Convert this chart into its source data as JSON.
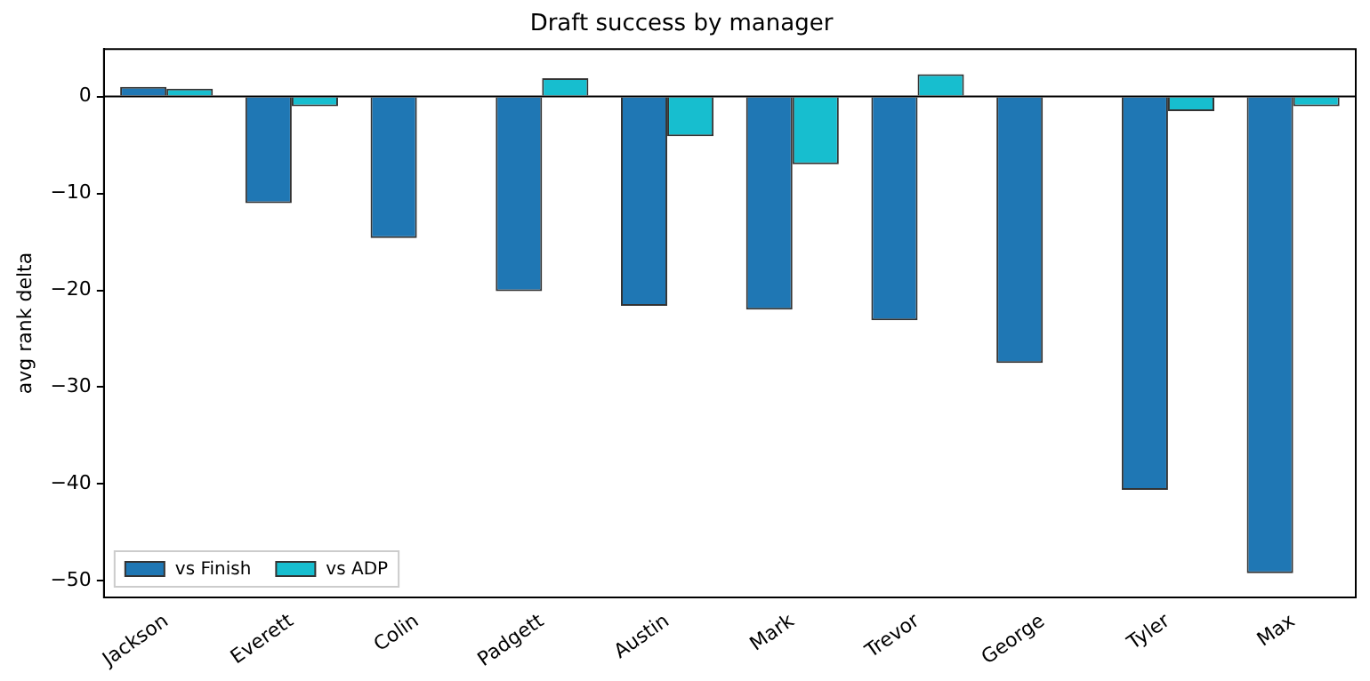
{
  "chart_data": {
    "type": "bar",
    "title": "Draft success by manager",
    "ylabel": "avg rank delta",
    "categories": [
      "Jackson",
      "Everett",
      "Colin",
      "Padgett",
      "Austin",
      "Mark",
      "Trevor",
      "George",
      "Tyler",
      "Max"
    ],
    "series": [
      {
        "name": "vs Finish",
        "color": "#1f77b4",
        "values": [
          1.0,
          -11.0,
          -14.6,
          -20.1,
          -21.6,
          -22.0,
          -23.1,
          -27.5,
          -40.6,
          -49.2
        ]
      },
      {
        "name": "vs ADP",
        "color": "#17becf",
        "values": [
          0.8,
          -1.0,
          null,
          1.9,
          -4.1,
          -7.0,
          2.3,
          null,
          -1.5,
          -1.0
        ]
      }
    ],
    "ylim": [
      -51.7,
      4.9
    ],
    "yticks": [
      0,
      -10,
      -20,
      -30,
      -40,
      -50
    ],
    "ref_lines": [
      {
        "axis": "y",
        "value": 0,
        "color": "#000000"
      }
    ],
    "grid": false,
    "legend": "bottom left"
  }
}
